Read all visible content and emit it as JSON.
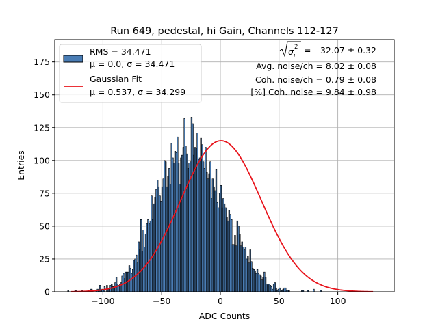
{
  "chart_data": {
    "type": "bar",
    "title": "Run 649, pedestal, hi Gain, Channels 112-127",
    "xlabel": "ADC Counts",
    "ylabel": "Entries",
    "xlim": [
      -141,
      148
    ],
    "ylim": [
      0,
      192
    ],
    "xticks": [
      -100,
      -50,
      0,
      50,
      100
    ],
    "yticks": [
      0,
      25,
      50,
      75,
      100,
      125,
      150,
      175
    ],
    "grid": true,
    "legend_placement": "top-left",
    "colors": {
      "bars": "#4a7db5",
      "bar_edge": "#000000",
      "fit": "#e8141c",
      "grid": "#b0b0b0"
    },
    "histogram": {
      "name": "RMS = 34.471",
      "label": "μ = 0.0, σ = 34.471",
      "bin_width": 1,
      "counts": [
        1,
        0,
        0,
        0,
        0,
        0,
        1,
        1,
        0,
        0,
        0,
        0,
        1,
        0,
        0,
        0,
        0,
        1,
        0,
        2,
        2,
        0,
        0,
        0,
        1,
        2,
        1,
        5,
        1,
        2,
        1,
        4,
        0,
        5,
        2,
        3,
        5,
        6,
        4,
        3,
        7,
        11,
        6,
        5,
        6,
        7,
        12,
        14,
        10,
        15,
        15,
        15,
        20,
        18,
        14,
        17,
        24,
        25,
        28,
        22,
        38,
        32,
        55,
        31,
        47,
        34,
        44,
        52,
        55,
        52,
        54,
        73,
        55,
        67,
        72,
        78,
        85,
        80,
        73,
        69,
        80,
        86,
        100,
        99,
        80,
        88,
        94,
        82,
        113,
        102,
        98,
        107,
        106,
        118,
        98,
        82,
        102,
        104,
        110,
        132,
        111,
        105,
        94,
        98,
        99,
        133,
        128,
        104,
        110,
        109,
        121,
        101,
        102,
        117,
        112,
        99,
        94,
        110,
        91,
        86,
        90,
        99,
        71,
        86,
        80,
        77,
        93,
        68,
        64,
        75,
        81,
        64,
        71,
        67,
        64,
        57,
        54,
        62,
        59,
        55,
        36,
        36,
        43,
        35,
        54,
        50,
        44,
        35,
        38,
        34,
        32,
        34,
        25,
        27,
        22,
        32,
        23,
        18,
        17,
        16,
        14,
        17,
        14,
        13,
        12,
        9,
        11,
        15,
        11,
        6,
        5,
        6,
        5,
        4,
        2,
        6,
        7,
        3,
        1,
        2,
        3,
        0,
        1,
        2,
        3,
        3,
        1,
        1,
        1,
        0,
        0,
        0,
        0,
        0,
        0,
        0,
        0,
        0,
        0,
        1,
        1,
        0,
        0,
        0,
        1,
        0,
        0,
        0,
        0,
        2,
        0,
        0,
        0,
        0,
        0,
        1,
        0,
        0,
        0,
        0,
        0,
        0,
        0,
        0,
        0,
        0,
        0,
        0,
        0,
        0,
        0,
        0,
        0,
        0,
        0,
        0,
        0,
        0,
        0,
        0,
        0,
        0,
        1
      ],
      "x_start": -130
    },
    "fit": {
      "name": "Gaussian Fit",
      "label": "μ = 0.537, σ = 34.299",
      "mu": 0.537,
      "sigma": 34.299,
      "amplitude": 115
    },
    "annotations": [
      "32.07 ± 0.32",
      "Avg. noise/ch = 8.02 ± 0.08",
      "Coh. noise/ch = 0.79 ± 0.08",
      "[%] Coh. noise = 9.84 ± 0.98"
    ]
  }
}
